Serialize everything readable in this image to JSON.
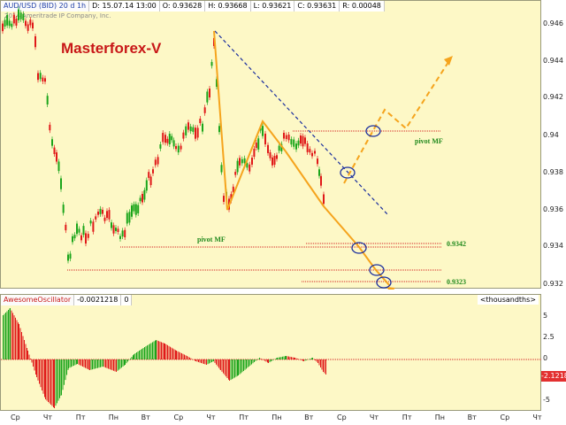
{
  "header": {
    "symbol": "AUD/USD (BID) 20 d 1h",
    "date": "D: 15.07.14 13:00",
    "open": "O: 0.93628",
    "high": "H: 0.93668",
    "low": "L: 0.93621",
    "close": "C: 0.93631",
    "range": "R: 0.00048"
  },
  "copyright": "2014 Ameritrade IP Company, Inc.",
  "brand": "Masterforex-V",
  "pivot_label": "pivot MF",
  "level_labels": [
    "0.9342",
    "0.9323"
  ],
  "price_axis": [
    "0.946",
    "0.944",
    "0.942",
    "0.94",
    "0.938",
    "0.936",
    "0.934",
    "0.932"
  ],
  "oscillator": {
    "name": "AwesomeOscillator",
    "value": "-0.0021218",
    "zero": "0",
    "unit": "<thousandths>",
    "axis": [
      "5",
      "2.5",
      "0",
      "-2.5",
      "-5"
    ],
    "current_badge": "-2.1218"
  },
  "time_axis": [
    "Ср",
    "Чт",
    "Пт",
    "Пн",
    "Вт",
    "Ср",
    "Чт",
    "Пт",
    "Пн",
    "Вт",
    "Ср",
    "Чт",
    "Пт",
    "Пн",
    "Вт",
    "Ср",
    "Чт"
  ],
  "colors": {
    "pane_bg": "#fdf8c6",
    "candle_up": "#1aa51a",
    "candle_down": "#e01818",
    "pivot_line": "#d22020",
    "trend_line": "#1a2e9e",
    "projection": "#f5a41d",
    "oscillator_up": "#1aa51a",
    "oscillator_down": "#e01818",
    "brand": "#c81818"
  }
}
